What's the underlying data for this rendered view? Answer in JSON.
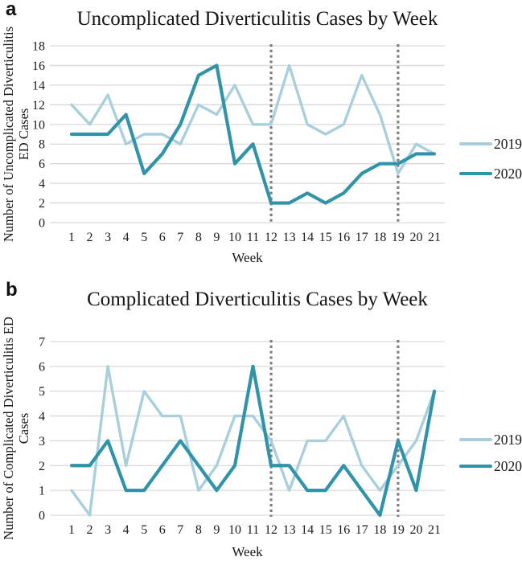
{
  "colors": {
    "series_2019": "#a9cfdd",
    "series_2020": "#3093aa",
    "gridline": "#d9d9d9",
    "vline": "#7f7f7f",
    "text": "#1c1c1c"
  },
  "panels": [
    {
      "label": "a",
      "title": "Uncomplicated Diverticulitis Cases by Week",
      "y_axis_title_lines": [
        "Number of Uncomplicated Diverticulitis",
        "ED Cases"
      ],
      "x_axis_title": "Week"
    },
    {
      "label": "b",
      "title": "Complicated Diverticulitis Cases by Week",
      "y_axis_title_lines": [
        "Number of Complicated Diverticulitis ED",
        "Cases"
      ],
      "x_axis_title": "Week"
    }
  ],
  "chart_data": [
    {
      "type": "line",
      "title": "Uncomplicated Diverticulitis Cases by Week",
      "xlabel": "Week",
      "ylabel": "Number of Uncomplicated Diverticulitis ED Cases",
      "categories": [
        1,
        2,
        3,
        4,
        5,
        6,
        7,
        8,
        9,
        10,
        11,
        12,
        13,
        14,
        15,
        16,
        17,
        18,
        19,
        20,
        21
      ],
      "series": [
        {
          "name": "2019",
          "values": [
            12,
            10,
            13,
            8,
            9,
            9,
            8,
            12,
            11,
            14,
            10,
            10,
            16,
            10,
            9,
            10,
            15,
            11,
            5,
            8,
            7
          ]
        },
        {
          "name": "2020",
          "values": [
            9,
            9,
            9,
            11,
            5,
            7,
            10,
            15,
            16,
            6,
            8,
            2,
            2,
            3,
            2,
            3,
            5,
            6,
            6,
            7,
            7
          ]
        }
      ],
      "ylim": [
        0,
        18
      ],
      "y_ticks": [
        0,
        2,
        4,
        6,
        8,
        10,
        12,
        14,
        16,
        18
      ],
      "vlines_at_weeks": [
        12,
        19
      ],
      "grid": "horizontal",
      "legend_position": "right"
    },
    {
      "type": "line",
      "title": "Complicated Diverticulitis Cases by Week",
      "xlabel": "Week",
      "ylabel": "Number of Complicated Diverticulitis ED Cases",
      "categories": [
        1,
        2,
        3,
        4,
        5,
        6,
        7,
        8,
        9,
        10,
        11,
        12,
        13,
        14,
        15,
        16,
        17,
        18,
        19,
        20,
        21
      ],
      "series": [
        {
          "name": "2019",
          "values": [
            1,
            0,
            6,
            2,
            5,
            4,
            4,
            1,
            2,
            4,
            4,
            3,
            1,
            3,
            3,
            4,
            2,
            1,
            2,
            3,
            5
          ]
        },
        {
          "name": "2020",
          "values": [
            2,
            2,
            3,
            1,
            1,
            2,
            3,
            2,
            1,
            2,
            6,
            2,
            2,
            1,
            1,
            2,
            1,
            0,
            3,
            1,
            5
          ]
        }
      ],
      "ylim": [
        0,
        7
      ],
      "y_ticks": [
        0,
        1,
        2,
        3,
        4,
        5,
        6,
        7
      ],
      "vlines_at_weeks": [
        12,
        19
      ],
      "grid": "horizontal",
      "legend_position": "right"
    }
  ]
}
